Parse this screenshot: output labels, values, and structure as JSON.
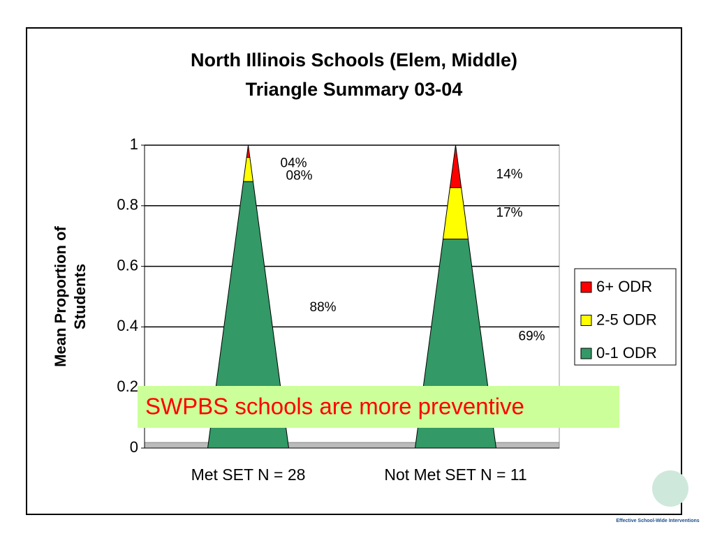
{
  "chart_data": {
    "type": "triangle",
    "title": [
      "North Illinois Schools (Elem, Middle)",
      "Triangle Summary 03-04"
    ],
    "ylabel": [
      "Mean Proportion of",
      "Students"
    ],
    "categories": [
      "Met SET N = 28",
      "Not Met SET N = 11"
    ],
    "series": [
      {
        "name": "0-1 ODR",
        "color": "#339966",
        "values": [
          0.88,
          0.69
        ],
        "value_labels": [
          "88%",
          "69%"
        ]
      },
      {
        "name": "2-5 ODR",
        "color": "#ffff00",
        "values": [
          0.08,
          0.17
        ],
        "value_labels": [
          "08%",
          "17%"
        ]
      },
      {
        "name": "6+ ODR",
        "color": "#ff0000",
        "values": [
          0.04,
          0.14
        ],
        "value_labels": [
          "04%",
          "14%"
        ]
      }
    ],
    "ylim": [
      0,
      1
    ],
    "yticks": [
      0,
      0.2,
      0.4,
      0.6,
      0.8,
      1
    ],
    "grid": true,
    "legend": "right",
    "annotation": "SWPBS schools are more preventive",
    "footer": "Effective School-Wide Interventions"
  }
}
